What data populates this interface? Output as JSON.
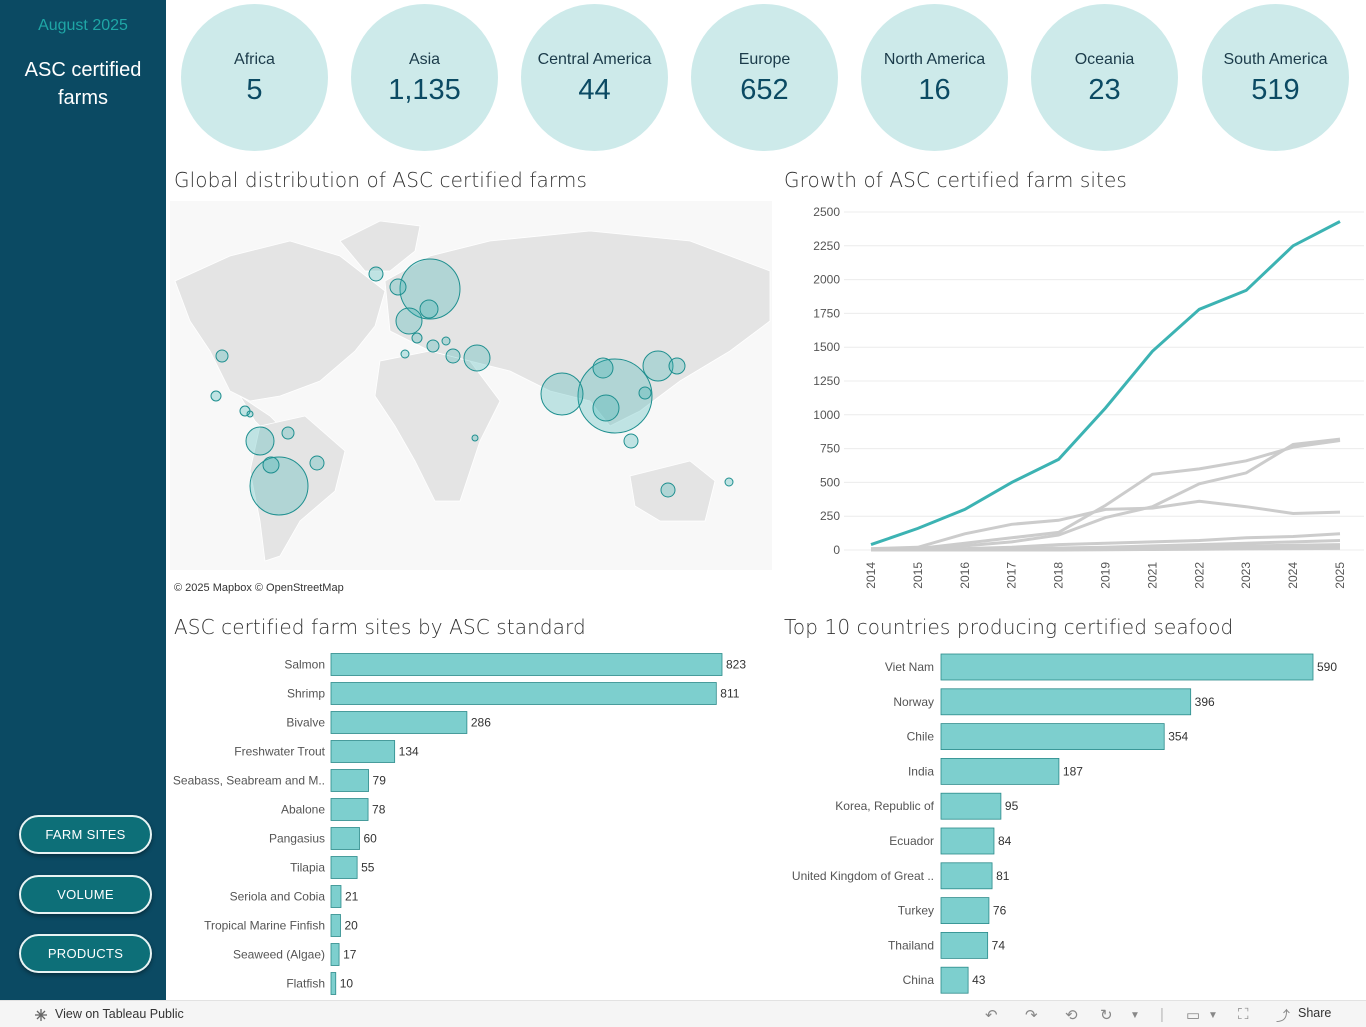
{
  "sidebar": {
    "date": "August 2025",
    "title": "ASC certified farms",
    "buttons": [
      "FARM SITES",
      "VOLUME",
      "PRODUCTS"
    ]
  },
  "kpis": [
    {
      "label": "Africa",
      "value": "5"
    },
    {
      "label": "Asia",
      "value": "1,135"
    },
    {
      "label": "Central America",
      "value": "44"
    },
    {
      "label": "Europe",
      "value": "652"
    },
    {
      "label": "North America",
      "value": "16"
    },
    {
      "label": "Oceania",
      "value": "23"
    },
    {
      "label": "South America",
      "value": "519"
    }
  ],
  "map": {
    "title": "Global distribution of ASC certified farms",
    "attribution": "© 2025 Mapbox  © OpenStreetMap"
  },
  "colors": {
    "accent": "#3cb3b3",
    "bar": "#7dcfce",
    "sidebar": "#0b4a63",
    "kpi": "#cdeaea",
    "grey_line": "#cccccc"
  },
  "chart_data": [
    {
      "type": "line",
      "title": "Growth of ASC certified farm sites",
      "x": [
        "2014",
        "2015",
        "2016",
        "2017",
        "2018",
        "2019",
        "2021",
        "2022",
        "2023",
        "2024",
        "2025"
      ],
      "ylim": [
        0,
        2500
      ],
      "yticks": [
        0,
        250,
        500,
        750,
        1000,
        1250,
        1500,
        1750,
        2000,
        2250,
        2500
      ],
      "highlight_series": [
        40,
        160,
        300,
        500,
        670,
        1050,
        1470,
        1780,
        1920,
        2250,
        2430
      ],
      "grey_series": [
        [
          10,
          20,
          120,
          190,
          220,
          300,
          310,
          360,
          320,
          270,
          280
        ],
        [
          5,
          10,
          50,
          90,
          130,
          330,
          560,
          600,
          660,
          760,
          810
        ],
        [
          0,
          5,
          30,
          60,
          110,
          240,
          320,
          490,
          570,
          780,
          820
        ],
        [
          0,
          0,
          10,
          20,
          40,
          50,
          60,
          70,
          90,
          100,
          120
        ],
        [
          0,
          0,
          5,
          10,
          15,
          20,
          30,
          40,
          50,
          60,
          70
        ],
        [
          0,
          0,
          0,
          5,
          10,
          15,
          20,
          25,
          30,
          35,
          40
        ],
        [
          0,
          0,
          0,
          0,
          5,
          8,
          10,
          12,
          15,
          18,
          20
        ],
        [
          0,
          0,
          0,
          0,
          0,
          2,
          4,
          5,
          8,
          10,
          12
        ]
      ]
    },
    {
      "type": "bar",
      "title": "ASC certified farm sites by ASC standard",
      "categories": [
        "Salmon",
        "Shrimp",
        "Bivalve",
        "Freshwater Trout",
        "Seabass, Seabream and M..",
        "Abalone",
        "Pangasius",
        "Tilapia",
        "Seriola and Cobia",
        "Tropical Marine Finfish",
        "Seaweed (Algae)",
        "Flatfish"
      ],
      "values": [
        823,
        811,
        286,
        134,
        79,
        78,
        60,
        55,
        21,
        20,
        17,
        10
      ]
    },
    {
      "type": "bar",
      "title": "Top 10 countries producing certified seafood",
      "categories": [
        "Viet Nam",
        "Norway",
        "Chile",
        "India",
        "Korea, Republic of",
        "Ecuador",
        "United Kingdom of Great ..",
        "Turkey",
        "Thailand",
        "China"
      ],
      "values": [
        590,
        396,
        354,
        187,
        95,
        84,
        81,
        76,
        74,
        43
      ]
    }
  ],
  "footer": {
    "link": "View on Tableau Public",
    "share": "Share"
  }
}
